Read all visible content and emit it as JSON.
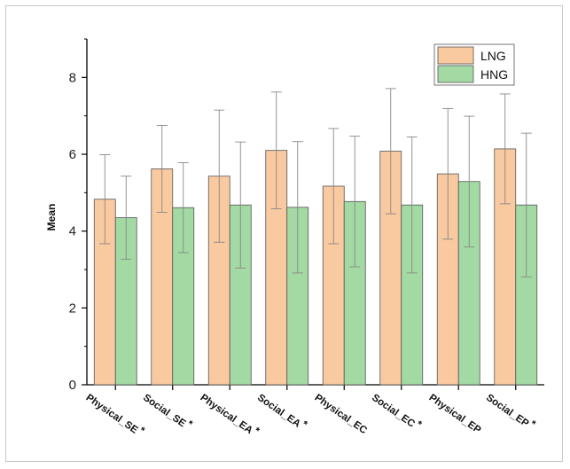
{
  "chart_data": {
    "type": "bar",
    "title": "",
    "xlabel": "",
    "ylabel": "Mean",
    "ylim": [
      0,
      9
    ],
    "yticks": [
      0,
      2,
      4,
      6,
      8
    ],
    "grid": false,
    "legend_position": "top-right",
    "categories": [
      {
        "name": "Physical_SE",
        "star": "*"
      },
      {
        "name": "Social_SE",
        "star": "*"
      },
      {
        "name": "Physical_EA",
        "star": "*"
      },
      {
        "name": "Social_EA",
        "star": "*"
      },
      {
        "name": "Physical_EC",
        "star": ""
      },
      {
        "name": "Social_EC",
        "star": "*"
      },
      {
        "name": "Physical_EP",
        "star": ""
      },
      {
        "name": "Social_EP",
        "star": "*"
      }
    ],
    "series": [
      {
        "name": "LNG",
        "color": "#f9c9a0",
        "values": [
          4.83,
          5.62,
          5.43,
          6.1,
          5.17,
          6.08,
          5.49,
          6.14
        ],
        "error": [
          1.16,
          1.13,
          1.72,
          1.52,
          1.5,
          1.63,
          1.7,
          1.43
        ]
      },
      {
        "name": "HNG",
        "color": "#a3d9a3",
        "values": [
          4.35,
          4.61,
          4.68,
          4.62,
          4.77,
          4.68,
          5.29,
          4.68
        ],
        "error": [
          1.08,
          1.17,
          1.64,
          1.71,
          1.7,
          1.77,
          1.7,
          1.87
        ]
      }
    ]
  }
}
